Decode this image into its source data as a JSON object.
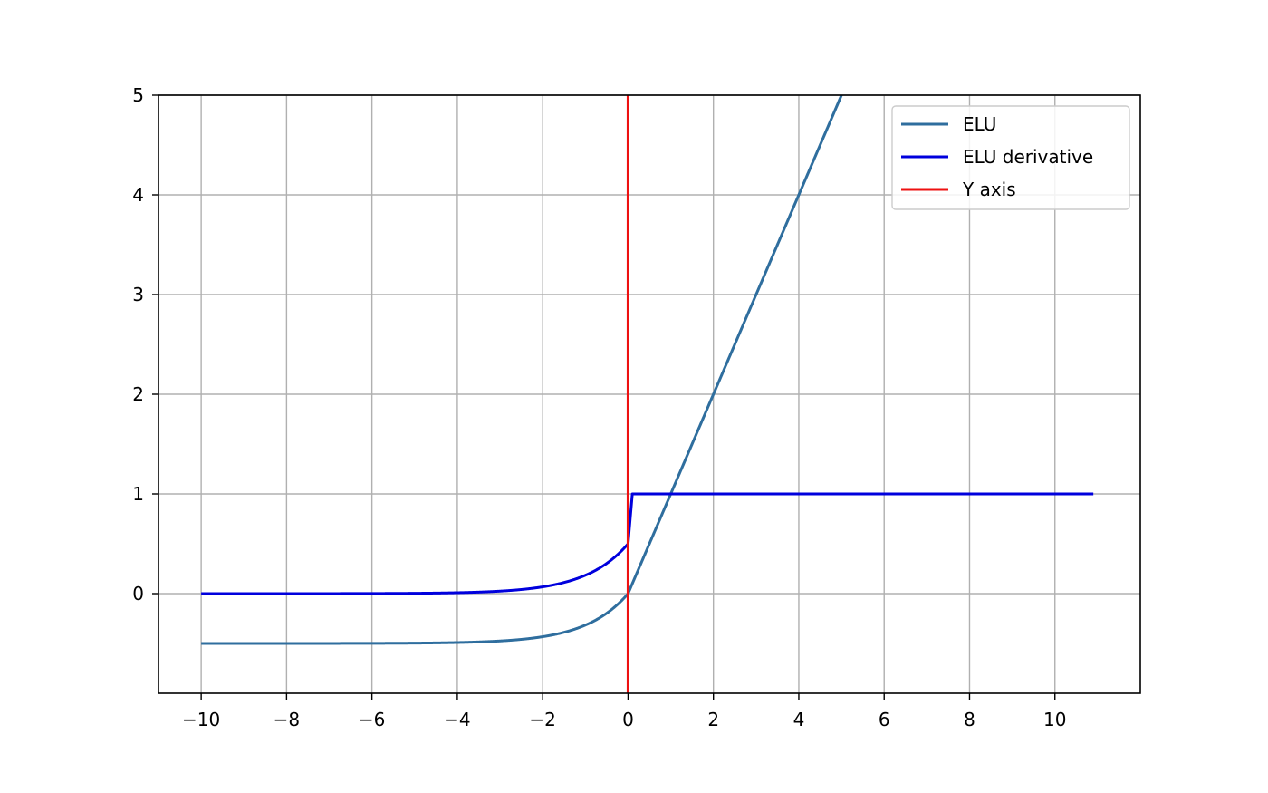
{
  "chart_data": {
    "type": "line",
    "title": "",
    "xlabel": "",
    "ylabel": "",
    "xlim": [
      -11,
      12
    ],
    "ylim": [
      -1,
      5
    ],
    "xticks": [
      -10,
      -8,
      -6,
      -4,
      -2,
      0,
      2,
      4,
      6,
      8,
      10
    ],
    "xtick_labels": [
      "−10",
      "−8",
      "−6",
      "−4",
      "−2",
      "0",
      "2",
      "4",
      "6",
      "8",
      "10"
    ],
    "yticks": [
      0,
      1,
      2,
      3,
      4,
      5
    ],
    "ytick_labels": [
      "0",
      "1",
      "2",
      "3",
      "4",
      "5"
    ],
    "grid": true,
    "legend_position": "top-right",
    "series": [
      {
        "name": "ELU",
        "color": "#2f6e9e",
        "alpha": 0.5,
        "function": "elu",
        "x_range": [
          -10,
          10.9
        ],
        "sample_points": [
          [
            -10,
            -0.5
          ],
          [
            -4,
            -0.49
          ],
          [
            -2,
            -0.43
          ],
          [
            -1,
            -0.32
          ],
          [
            0,
            0
          ],
          [
            1,
            1
          ],
          [
            2,
            2
          ],
          [
            4,
            4
          ],
          [
            5,
            5
          ]
        ]
      },
      {
        "name": "ELU derivative",
        "color": "#0000dd",
        "function": "elu_derivative",
        "x_range": [
          -10,
          10.9
        ],
        "sample_points": [
          [
            -10,
            0.0
          ],
          [
            -4,
            0.01
          ],
          [
            -2,
            0.07
          ],
          [
            -1,
            0.18
          ],
          [
            0,
            0.5
          ],
          [
            0.1,
            1
          ],
          [
            10.9,
            1
          ]
        ]
      },
      {
        "name": "Y axis",
        "color": "#ee1111",
        "function": "vertical",
        "x": 0,
        "y_range": [
          -1,
          5
        ]
      }
    ]
  }
}
